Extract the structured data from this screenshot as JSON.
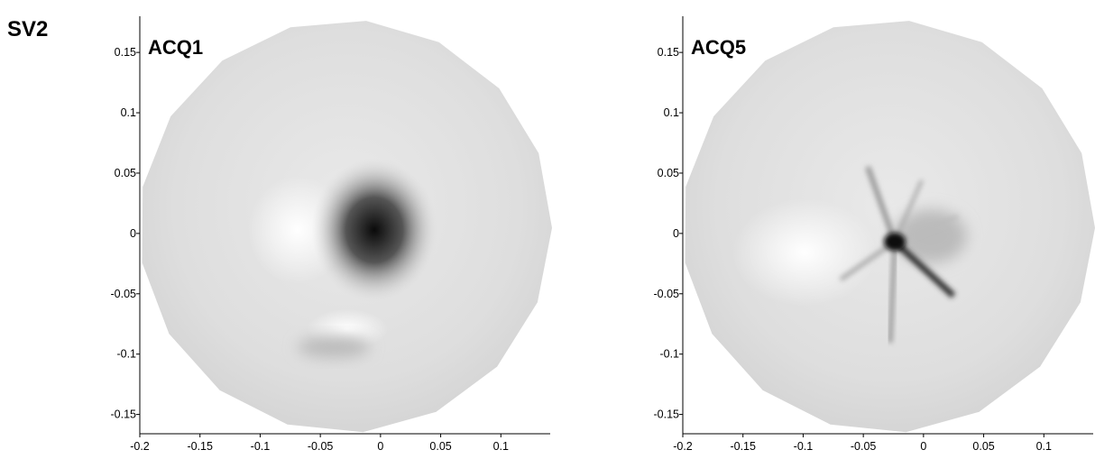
{
  "title": "SV2",
  "chart_data": [
    {
      "type": "image",
      "label": "ACQ1",
      "xlim": [
        -0.2,
        0.141
      ],
      "ylim": [
        -0.166,
        0.18
      ],
      "xticks": [
        -0.2,
        -0.15,
        -0.1,
        -0.05,
        0,
        0.05,
        0.1
      ],
      "yticks": [
        -0.15,
        -0.1,
        -0.05,
        0,
        0.05,
        0.1,
        0.15
      ]
    },
    {
      "type": "image",
      "label": "ACQ5",
      "xlim": [
        -0.2,
        0.141
      ],
      "ylim": [
        -0.166,
        0.18
      ],
      "xticks": [
        -0.2,
        -0.15,
        -0.1,
        -0.05,
        0,
        0.05,
        0.1
      ],
      "yticks": [
        -0.15,
        -0.1,
        -0.05,
        0,
        0.05,
        0.1,
        0.15
      ]
    }
  ]
}
